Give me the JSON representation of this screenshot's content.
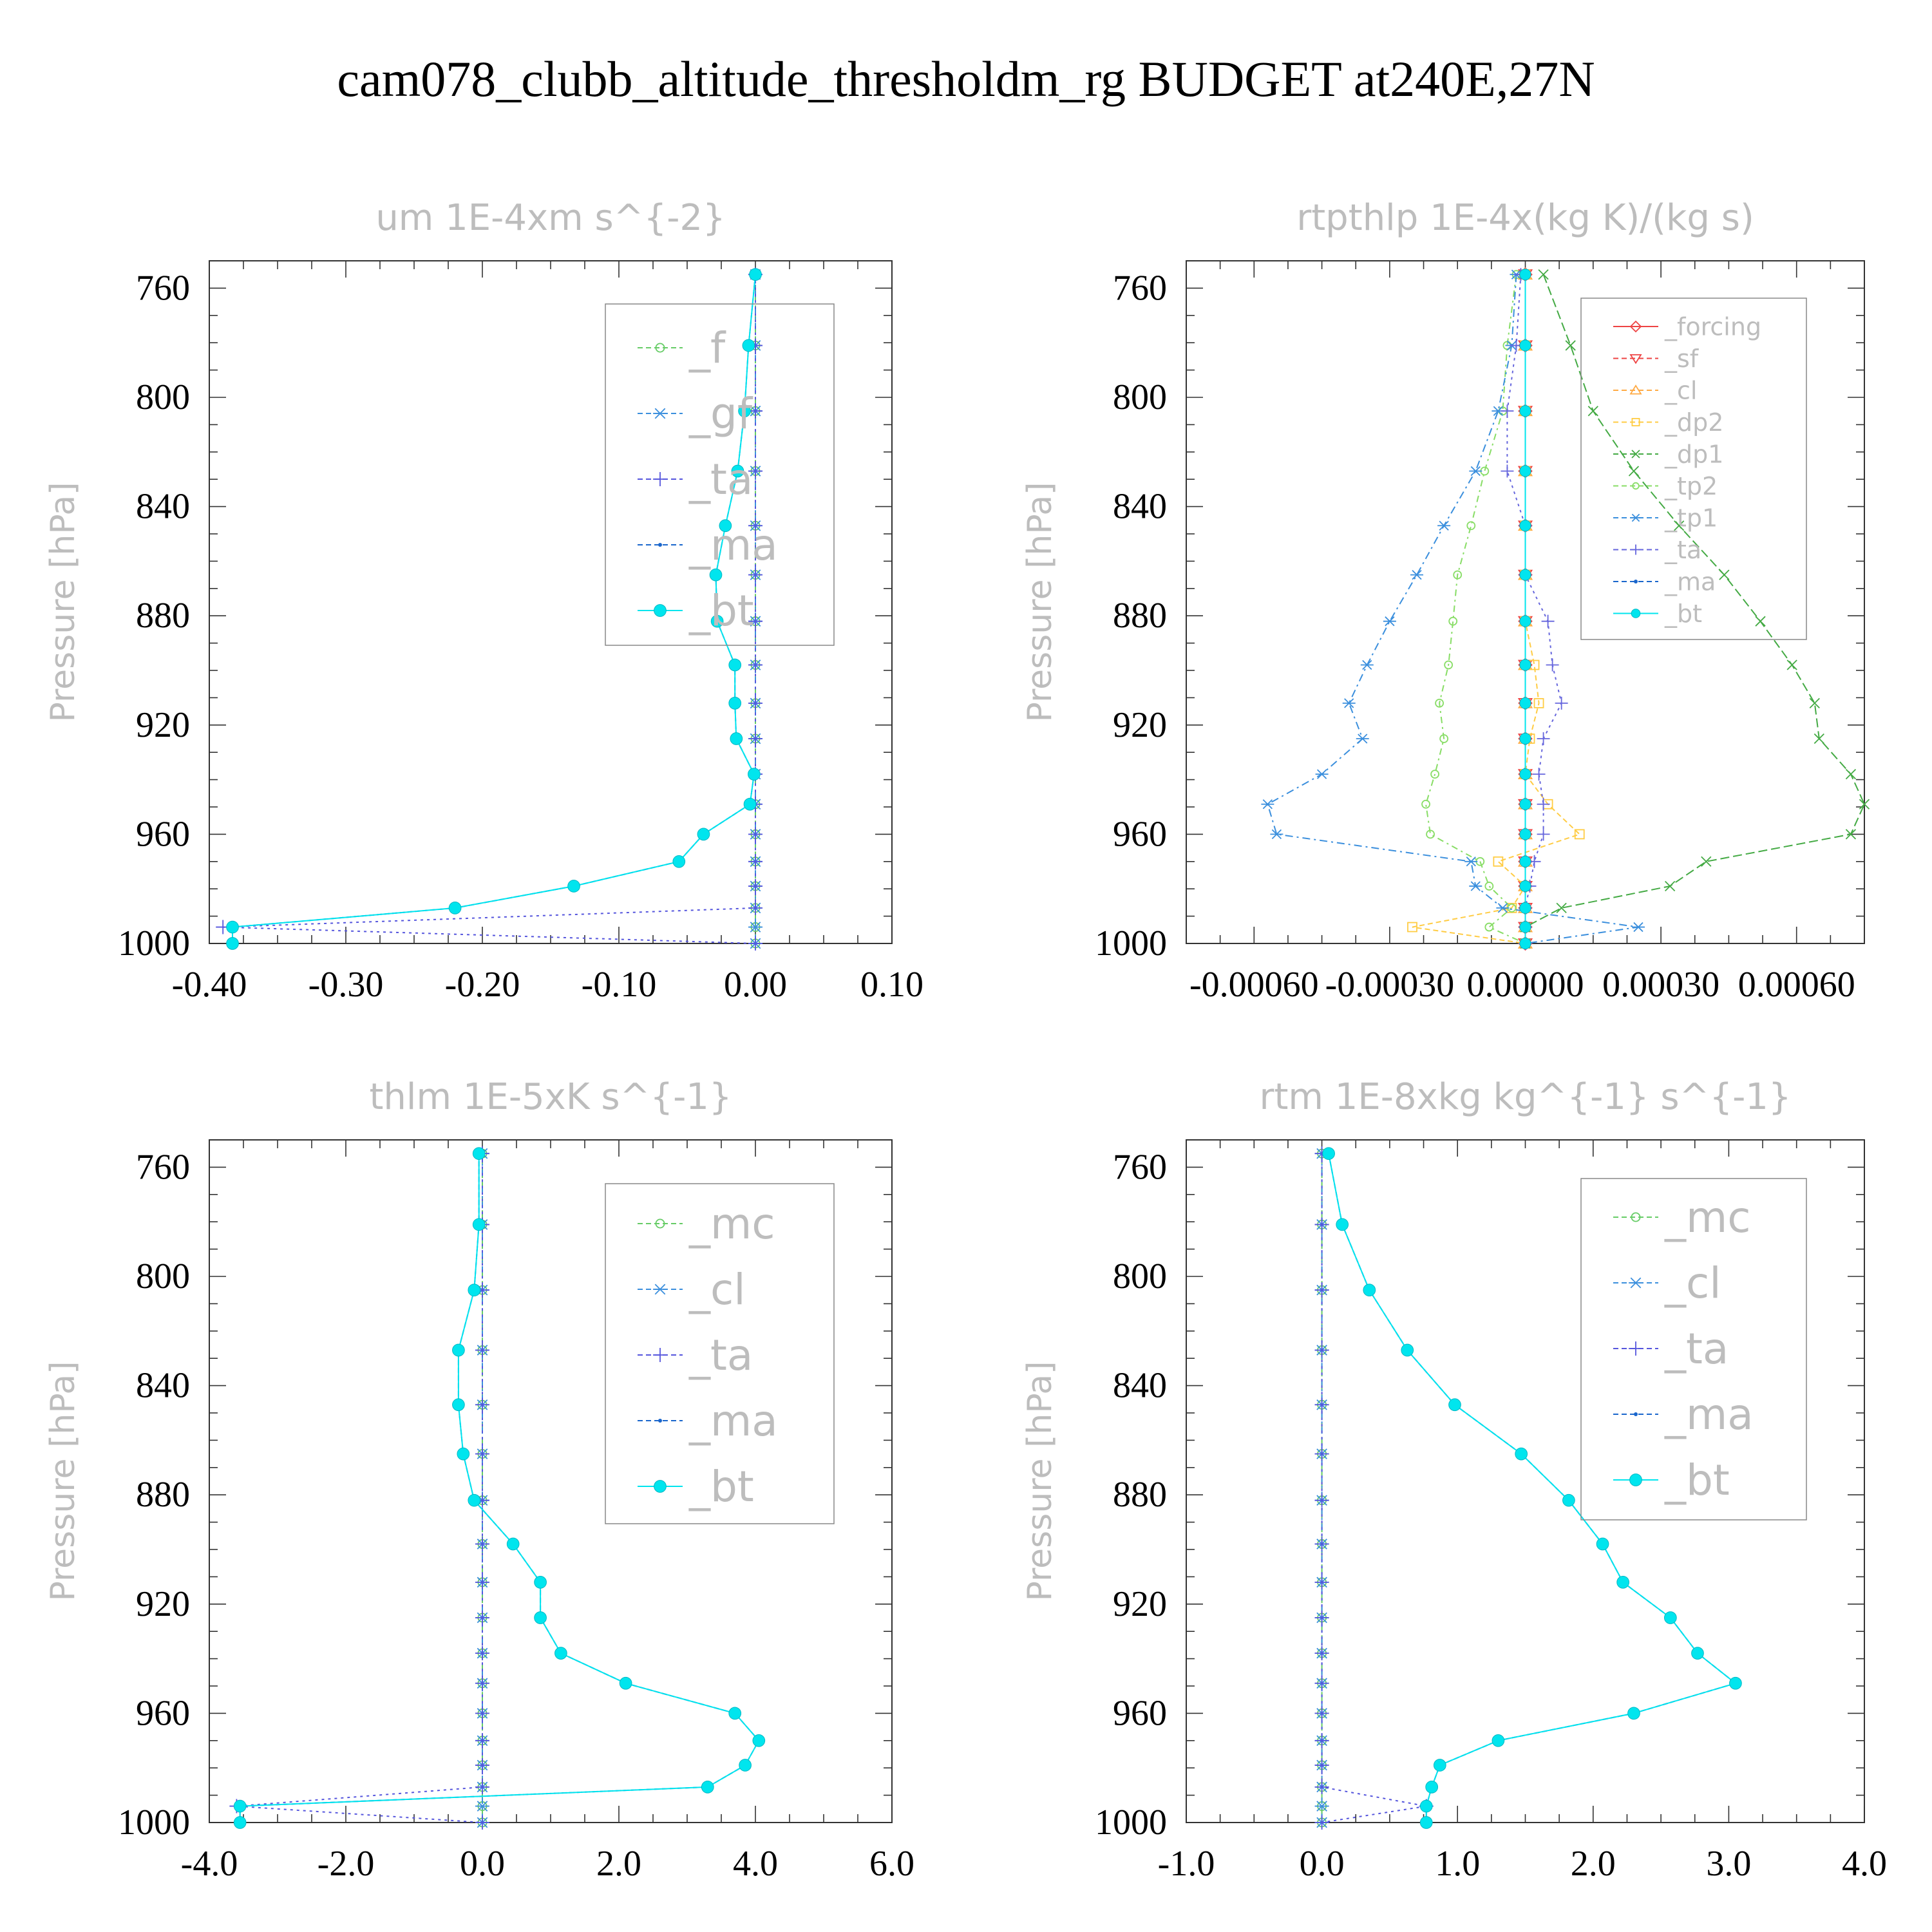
{
  "page": {
    "title": "cam078_clubb_altitude_thresholdm_rg  BUDGET at240E,27N"
  },
  "chart_data": [
    {
      "type": "line",
      "title": "um   1E-4xm s^{-2}",
      "ylabel": "Pressure [hPa]",
      "xlim": [
        -0.4,
        0.1
      ],
      "ylim": [
        1000,
        750
      ],
      "xticks": [
        -0.4,
        -0.3,
        -0.2,
        -0.1,
        0.0,
        0.1
      ],
      "xtick_labels": [
        "-0.40",
        "-0.30",
        "-0.20",
        "-0.10",
        "0.00",
        "0.10"
      ],
      "yticks": [
        760,
        800,
        840,
        880,
        920,
        960,
        1000
      ],
      "ytick_labels": [
        "760",
        "800",
        "840",
        "880",
        "920",
        "960",
        "1000"
      ],
      "legend": [
        "_f",
        "_gf",
        "_ta",
        "_ma",
        "_bt"
      ],
      "y": [
        755,
        781,
        805,
        827,
        847,
        865,
        882,
        898,
        912,
        925,
        938,
        949,
        960,
        970,
        979,
        987,
        994,
        1000
      ],
      "series": [
        {
          "name": "_f",
          "color": "#66cc66",
          "marker": "circle",
          "values": [
            0,
            0,
            0,
            0,
            0,
            0,
            0,
            0,
            0,
            0,
            0,
            0,
            0,
            0,
            0,
            0,
            0,
            0
          ]
        },
        {
          "name": "_gf",
          "color": "#3b8fdd",
          "marker": "asterisk",
          "values": [
            0,
            0,
            0,
            0,
            0,
            0,
            0,
            0,
            0,
            0,
            0,
            0,
            0,
            0,
            0,
            0,
            0,
            0
          ]
        },
        {
          "name": "_ta",
          "color": "#5555dd",
          "marker": "plus",
          "values": [
            0,
            0,
            0,
            0,
            0,
            0,
            0,
            0,
            0,
            0,
            0,
            0,
            0,
            0,
            0,
            0,
            -0.39,
            0
          ]
        },
        {
          "name": "_ma",
          "color": "#1a66cc",
          "marker": "dot",
          "values": [
            0,
            -0.005,
            -0.008,
            -0.013,
            -0.022,
            -0.029,
            -0.028,
            -0.015,
            -0.015,
            -0.014,
            -0.001,
            -0.004,
            -0.038,
            -0.056,
            -0.133,
            -0.22,
            -0.383,
            -0.383
          ]
        },
        {
          "name": "_bt",
          "color": "#00e5ee",
          "marker": "filled",
          "values": [
            0,
            -0.005,
            -0.008,
            -0.013,
            -0.022,
            -0.029,
            -0.028,
            -0.015,
            -0.015,
            -0.014,
            -0.001,
            -0.004,
            -0.038,
            -0.056,
            -0.133,
            -0.22,
            -0.383,
            -0.383
          ]
        }
      ]
    },
    {
      "type": "line",
      "title": "rtpthlp   1E-4x(kg K)/(kg s)",
      "ylabel": "Pressure [hPa]",
      "xlim": [
        -0.00075,
        0.00075
      ],
      "ylim": [
        1000,
        750
      ],
      "xticks": [
        -0.0006,
        -0.0003,
        0.0,
        0.0003,
        0.0006
      ],
      "xtick_labels": [
        "-0.00060",
        "-0.00030",
        "0.00000",
        "0.00030",
        "0.00060"
      ],
      "yticks": [
        760,
        800,
        840,
        880,
        920,
        960,
        1000
      ],
      "ytick_labels": [
        "760",
        "800",
        "840",
        "880",
        "920",
        "960",
        "1000"
      ],
      "legend": [
        "_forcing",
        "_sf",
        "_cl",
        "_dp2",
        "_dp1",
        "_tp2",
        "_tp1",
        "_ta",
        "_ma",
        "_bt"
      ],
      "y": [
        755,
        781,
        805,
        827,
        847,
        865,
        882,
        898,
        912,
        925,
        938,
        949,
        960,
        970,
        979,
        987,
        994,
        1000
      ],
      "series": [
        {
          "name": "_forcing",
          "color": "#ee4444",
          "marker": "diamond",
          "values": [
            0,
            0,
            0,
            0,
            0,
            0,
            0,
            0,
            0,
            0,
            0,
            0,
            0,
            0,
            0,
            0,
            0,
            0
          ]
        },
        {
          "name": "_sf",
          "color": "#ee4444",
          "marker": "tri-down",
          "values": [
            0,
            0,
            0,
            0,
            0,
            0,
            0,
            0,
            0,
            0,
            0,
            0,
            0,
            0,
            0,
            0,
            0,
            0
          ]
        },
        {
          "name": "_cl",
          "color": "#ffaa44",
          "marker": "tri-up",
          "values": [
            0,
            0,
            0,
            0,
            0,
            0,
            0,
            0,
            0,
            0,
            0,
            0,
            0,
            0,
            0,
            0,
            0,
            0
          ]
        },
        {
          "name": "_dp2",
          "color": "#ffcc44",
          "marker": "square",
          "values": [
            0,
            0,
            0,
            0,
            0,
            0,
            0,
            2e-05,
            3e-05,
            1e-05,
            0,
            5e-05,
            0.00012,
            -6e-05,
            0,
            -3e-05,
            -0.00025,
            0
          ]
        },
        {
          "name": "_dp1",
          "color": "#44aa44",
          "marker": "cross",
          "values": [
            4e-05,
            0.0001,
            0.00015,
            0.00024,
            0.00034,
            0.00044,
            0.00052,
            0.00059,
            0.00064,
            0.00065,
            0.00072,
            0.00078,
            0.00072,
            0.0004,
            0.00032,
            8e-05,
            0.0,
            0
          ]
        },
        {
          "name": "_tp2",
          "color": "#88dd66",
          "marker": "circle",
          "values": [
            -2e-05,
            -4e-05,
            -5e-05,
            -9e-05,
            -0.00012,
            -0.00015,
            -0.00016,
            -0.00017,
            -0.00019,
            -0.00018,
            -0.0002,
            -0.00022,
            -0.00021,
            -0.0001,
            -8e-05,
            -3e-05,
            -8e-05,
            0
          ]
        },
        {
          "name": "_tp1",
          "color": "#3b8fdd",
          "marker": "asterisk",
          "values": [
            -2e-05,
            -3e-05,
            -6e-05,
            -0.00011,
            -0.00018,
            -0.00024,
            -0.0003,
            -0.00035,
            -0.00039,
            -0.00036,
            -0.00045,
            -0.00057,
            -0.00055,
            -0.00012,
            -0.00011,
            -5e-05,
            0.00025,
            0
          ]
        },
        {
          "name": "_ta",
          "color": "#6666dd",
          "marker": "plus",
          "values": [
            -1e-05,
            -2e-05,
            -4e-05,
            -4e-05,
            0,
            0,
            5e-05,
            6e-05,
            8e-05,
            4e-05,
            3e-05,
            4e-05,
            4e-05,
            2e-05,
            1e-05,
            0,
            0,
            0
          ]
        },
        {
          "name": "_ma",
          "color": "#1a66cc",
          "marker": "dot",
          "values": [
            0,
            0,
            0,
            0,
            0,
            0,
            0,
            0,
            0,
            0,
            0,
            0,
            0,
            0,
            0,
            0,
            0,
            0
          ]
        },
        {
          "name": "_bt",
          "color": "#00e5ee",
          "marker": "filled",
          "values": [
            0,
            0,
            0,
            0,
            0,
            0,
            0,
            0,
            0,
            0,
            0,
            0,
            0,
            0,
            0,
            0,
            0,
            0
          ]
        }
      ]
    },
    {
      "type": "line",
      "title": "thlm   1E-5xK s^{-1}",
      "ylabel": "Pressure [hPa]",
      "xlim": [
        -4.0,
        6.0
      ],
      "ylim": [
        1000,
        750
      ],
      "xticks": [
        -4.0,
        -2.0,
        0.0,
        2.0,
        4.0,
        6.0
      ],
      "xtick_labels": [
        "-4.0",
        "-2.0",
        "0.0",
        "2.0",
        "4.0",
        "6.0"
      ],
      "yticks": [
        760,
        800,
        840,
        880,
        920,
        960,
        1000
      ],
      "ytick_labels": [
        "760",
        "800",
        "840",
        "880",
        "920",
        "960",
        "1000"
      ],
      "legend": [
        "_mc",
        "_cl",
        "_ta",
        "_ma",
        "_bt"
      ],
      "y": [
        755,
        781,
        805,
        827,
        847,
        865,
        882,
        898,
        912,
        925,
        938,
        949,
        960,
        970,
        979,
        987,
        994,
        1000
      ],
      "series": [
        {
          "name": "_mc",
          "color": "#66cc66",
          "marker": "circle",
          "values": [
            0,
            0,
            0,
            0,
            0,
            0,
            0,
            0,
            0,
            0,
            0,
            0,
            0,
            0,
            0,
            0,
            0,
            0
          ]
        },
        {
          "name": "_cl",
          "color": "#3b8fdd",
          "marker": "asterisk",
          "values": [
            0,
            0,
            0,
            0,
            0,
            0,
            0,
            0,
            0,
            0,
            0,
            0,
            0,
            0,
            0,
            0,
            0,
            0
          ]
        },
        {
          "name": "_ta",
          "color": "#5555dd",
          "marker": "plus",
          "values": [
            0,
            0,
            0,
            0,
            0,
            0,
            0,
            0,
            0,
            0,
            0,
            0,
            0,
            0,
            0,
            0,
            -3.6,
            0
          ]
        },
        {
          "name": "_ma",
          "color": "#1a66cc",
          "marker": "dot",
          "values": [
            -0.05,
            -0.05,
            -0.12,
            -0.35,
            -0.35,
            -0.28,
            -0.12,
            0.45,
            0.85,
            0.85,
            1.15,
            2.1,
            3.7,
            4.05,
            3.85,
            3.3,
            -3.55,
            -3.55
          ]
        },
        {
          "name": "_bt",
          "color": "#00e5ee",
          "marker": "filled",
          "values": [
            -0.05,
            -0.05,
            -0.12,
            -0.35,
            -0.35,
            -0.28,
            -0.12,
            0.45,
            0.85,
            0.85,
            1.15,
            2.1,
            3.7,
            4.05,
            3.85,
            3.3,
            -3.55,
            -3.55
          ]
        }
      ]
    },
    {
      "type": "line",
      "title": "rtm   1E-8xkg kg^{-1} s^{-1}",
      "ylabel": "Pressure [hPa]",
      "xlim": [
        -1.0,
        4.0
      ],
      "ylim": [
        1000,
        750
      ],
      "xticks": [
        -1.0,
        0.0,
        1.0,
        2.0,
        3.0,
        4.0
      ],
      "xtick_labels": [
        "-1.0",
        "0.0",
        "1.0",
        "2.0",
        "3.0",
        "4.0"
      ],
      "yticks": [
        760,
        800,
        840,
        880,
        920,
        960,
        1000
      ],
      "ytick_labels": [
        "760",
        "800",
        "840",
        "880",
        "920",
        "960",
        "1000"
      ],
      "legend": [
        "_mc",
        "_cl",
        "_ta",
        "_ma",
        "_bt"
      ],
      "y": [
        755,
        781,
        805,
        827,
        847,
        865,
        882,
        898,
        912,
        925,
        938,
        949,
        960,
        970,
        979,
        987,
        994,
        1000
      ],
      "series": [
        {
          "name": "_mc",
          "color": "#66cc66",
          "marker": "circle",
          "values": [
            0,
            0,
            0,
            0,
            0,
            0,
            0,
            0,
            0,
            0,
            0,
            0,
            0,
            0,
            0,
            0,
            0,
            0
          ]
        },
        {
          "name": "_cl",
          "color": "#3b8fdd",
          "marker": "asterisk",
          "values": [
            0,
            0,
            0,
            0,
            0,
            0,
            0,
            0,
            0,
            0,
            0,
            0,
            0,
            0,
            0,
            0,
            0,
            0
          ]
        },
        {
          "name": "_ta",
          "color": "#5555dd",
          "marker": "plus",
          "values": [
            0,
            0,
            0,
            0,
            0,
            0,
            0,
            0,
            0,
            0,
            0,
            0,
            0,
            0,
            0,
            0,
            0.77,
            0
          ]
        },
        {
          "name": "_ma",
          "color": "#1a66cc",
          "marker": "dot",
          "values": [
            0.05,
            0.15,
            0.35,
            0.63,
            0.98,
            1.47,
            1.82,
            2.07,
            2.22,
            2.57,
            2.77,
            3.05,
            2.3,
            1.3,
            0.87,
            0.81,
            0.77,
            0.77
          ]
        },
        {
          "name": "_bt",
          "color": "#00e5ee",
          "marker": "filled",
          "values": [
            0.05,
            0.15,
            0.35,
            0.63,
            0.98,
            1.47,
            1.82,
            2.07,
            2.22,
            2.57,
            2.77,
            3.05,
            2.3,
            1.3,
            0.87,
            0.81,
            0.77,
            0.77
          ]
        }
      ]
    }
  ]
}
